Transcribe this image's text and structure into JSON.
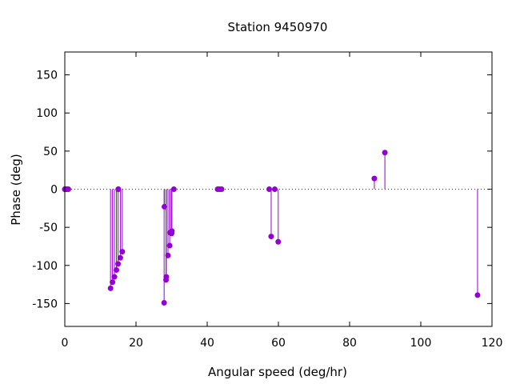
{
  "chart_data": {
    "type": "scatter",
    "style": "impulses-with-points",
    "title": "Station 9450970",
    "xlabel": "Angular speed (deg/hr)",
    "ylabel": "Phase (deg)",
    "xlim": [
      0,
      120
    ],
    "ylim": [
      -180,
      180
    ],
    "xticks": [
      0,
      20,
      40,
      60,
      80,
      100,
      120
    ],
    "yticks": [
      -150,
      -100,
      -50,
      0,
      50,
      100,
      150
    ],
    "zero_line": true,
    "grid": false,
    "color": "#9400d3",
    "points": [
      [
        0.0,
        0
      ],
      [
        0.04,
        0
      ],
      [
        0.08,
        0
      ],
      [
        0.5,
        0
      ],
      [
        0.54,
        0
      ],
      [
        1.0,
        0
      ],
      [
        12.85,
        -130
      ],
      [
        13.4,
        -122
      ],
      [
        13.94,
        -115
      ],
      [
        14.5,
        -106
      ],
      [
        14.96,
        -98
      ],
      [
        15.0,
        0
      ],
      [
        15.04,
        0
      ],
      [
        15.59,
        -90
      ],
      [
        16.14,
        -82
      ],
      [
        27.97,
        -23
      ],
      [
        27.9,
        -149
      ],
      [
        28.44,
        -119
      ],
      [
        28.51,
        -115
      ],
      [
        28.98,
        -87
      ],
      [
        29.46,
        -74
      ],
      [
        29.53,
        -57
      ],
      [
        30.0,
        -58
      ],
      [
        30.08,
        -55
      ],
      [
        30.63,
        0
      ],
      [
        42.93,
        0
      ],
      [
        43.48,
        0
      ],
      [
        44.03,
        0
      ],
      [
        57.42,
        0
      ],
      [
        57.97,
        -62
      ],
      [
        58.98,
        0
      ],
      [
        59.95,
        -69
      ],
      [
        86.95,
        14
      ],
      [
        89.91,
        48
      ],
      [
        115.94,
        -139
      ]
    ]
  }
}
